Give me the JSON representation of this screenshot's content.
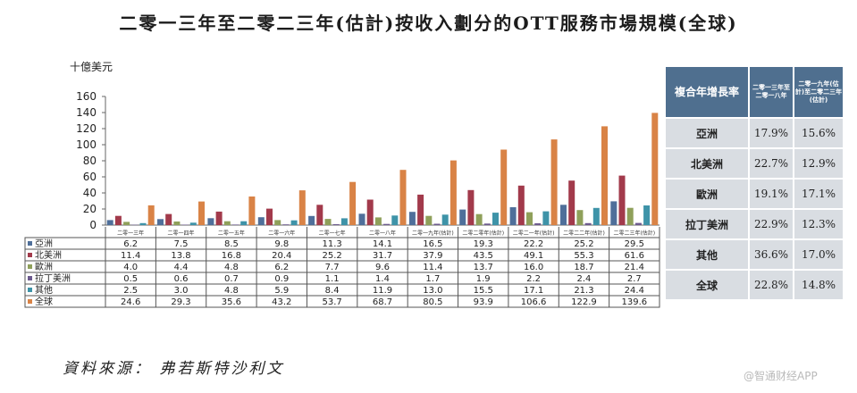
{
  "title": "二零一三年至二零二三年(估計)按收入劃分的OTT服務市場規模(全球)",
  "unit": "十億美元",
  "source": "資料來源： 弗若斯特沙利文",
  "watermark": "@智通财经APP",
  "chart_data": {
    "type": "bar",
    "ylim": [
      0,
      160
    ],
    "yticks": [
      0,
      20,
      40,
      60,
      80,
      100,
      120,
      140,
      160
    ],
    "categories": [
      "二零一三年",
      "二零一四年",
      "二零一五年",
      "二零一六年",
      "二零一七年",
      "二零一八年",
      "二零一九年(估計)",
      "二零二零年(估計)",
      "二零二一年(估計)",
      "二零二二年(估計)",
      "二零二三年(估計)"
    ],
    "series": [
      {
        "name": "亞洲",
        "color": "#4f6f9a",
        "values": [
          6.2,
          7.5,
          8.5,
          9.8,
          11.3,
          14.1,
          16.5,
          19.3,
          22.2,
          25.2,
          29.5
        ]
      },
      {
        "name": "北美洲",
        "color": "#a23a4b",
        "values": [
          11.4,
          13.8,
          16.8,
          20.4,
          25.2,
          31.7,
          37.9,
          43.5,
          49.1,
          55.3,
          61.6
        ]
      },
      {
        "name": "歐洲",
        "color": "#8fa05a",
        "values": [
          4.0,
          4.4,
          4.8,
          6.2,
          7.7,
          9.6,
          11.4,
          13.7,
          16.0,
          18.7,
          21.4
        ]
      },
      {
        "name": "拉丁美洲",
        "color": "#6c5a8e",
        "values": [
          0.5,
          0.6,
          0.7,
          0.9,
          1.1,
          1.4,
          1.7,
          1.9,
          2.2,
          2.4,
          2.7
        ]
      },
      {
        "name": "其他",
        "color": "#3e93a8",
        "values": [
          2.5,
          3.0,
          4.8,
          5.9,
          8.4,
          11.9,
          13.0,
          15.5,
          17.1,
          21.3,
          24.4
        ]
      },
      {
        "name": "全球",
        "color": "#d98346",
        "values": [
          24.6,
          29.3,
          35.6,
          43.2,
          53.7,
          68.7,
          80.5,
          93.9,
          106.6,
          122.9,
          139.6
        ]
      }
    ],
    "data_table": {
      "rows": [
        {
          "name": "亞洲",
          "values": [
            "6.2",
            "7.5",
            "8.5",
            "9.8",
            "11.3",
            "14.1",
            "16.5",
            "19.3",
            "22.2",
            "25.2",
            "29.5"
          ]
        },
        {
          "name": "北美洲",
          "values": [
            "11.4",
            "13.8",
            "16.8",
            "20.4",
            "25.2",
            "31.7",
            "37.9",
            "43.5",
            "49.1",
            "55.3",
            "61.6"
          ]
        },
        {
          "name": "歐洲",
          "values": [
            "4.0",
            "4.4",
            "4.8",
            "6.2",
            "7.7",
            "9.6",
            "11.4",
            "13.7",
            "16.0",
            "18.7",
            "21.4"
          ]
        },
        {
          "name": "拉丁美洲",
          "values": [
            "0.5",
            "0.6",
            "0.7",
            "0.9",
            "1.1",
            "1.4",
            "1.7",
            "1.9",
            "2.2",
            "2.4",
            "2.7"
          ]
        },
        {
          "name": "其他",
          "values": [
            "2.5",
            "3.0",
            "4.8",
            "5.9",
            "8.4",
            "11.9",
            "13.0",
            "15.5",
            "17.1",
            "21.3",
            "24.4"
          ]
        },
        {
          "name": "全球",
          "values": [
            "24.6",
            "29.3",
            "35.6",
            "43.2",
            "53.7",
            "68.7",
            "80.5",
            "93.9",
            "106.6",
            "122.9",
            "139.6"
          ]
        }
      ]
    }
  },
  "growth_table": {
    "header": [
      "複合年增長率",
      "二零一三年至二零一八年",
      "二零一九年(估計)至二零二三年(估計)"
    ],
    "rows": [
      {
        "label": "亞洲",
        "a": "17.9%",
        "b": "15.6%"
      },
      {
        "label": "北美洲",
        "a": "22.7%",
        "b": "12.9%"
      },
      {
        "label": "歐洲",
        "a": "19.1%",
        "b": "17.1%"
      },
      {
        "label": "拉丁美洲",
        "a": "22.9%",
        "b": "12.3%"
      },
      {
        "label": "其他",
        "a": "36.6%",
        "b": "17.0%"
      },
      {
        "label": "全球",
        "a": "22.8%",
        "b": "14.8%"
      }
    ]
  }
}
